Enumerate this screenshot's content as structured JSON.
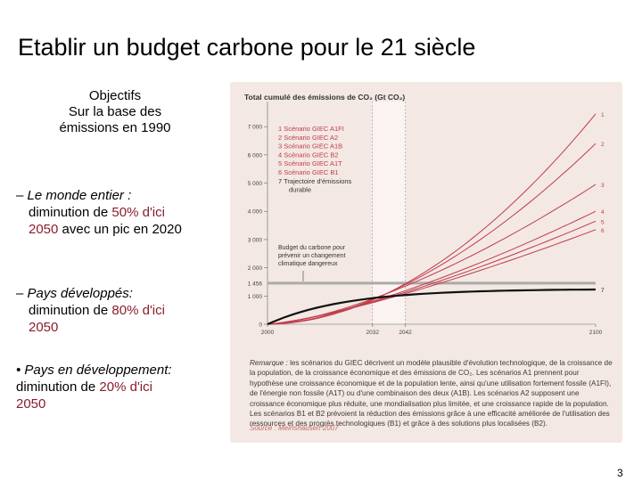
{
  "slide": {
    "title": "Etablir un budget carbone pour le 21 siècle",
    "objectifs": [
      "Objectifs",
      "Sur la base des",
      "émissions en 1990"
    ],
    "bullets": [
      {
        "lead": "– Le monde entier :",
        "pre": "diminution de ",
        "hl1": "50% d'ici",
        "hl2": "2050",
        "post": " avec un pic en 2020"
      },
      {
        "lead": "– Pays développés:",
        "pre": "diminution de ",
        "hl1": "80% d'ici",
        "hl2": "2050",
        "post": ""
      },
      {
        "lead": "• Pays en développement:",
        "pre": "diminution de ",
        "hl1": "20% d'ici",
        "hl2": "2050",
        "post": ""
      }
    ],
    "page_number": "3"
  },
  "figure": {
    "title": "Total cumulé des émissions de CO₂ (Gt CO₂)",
    "legend": [
      "1 Scénario GIEC A1FI",
      "2 Scénario GIEC A2",
      "3 Scénario GIEC A1B",
      "4 Scénario GIEC B2",
      "5 Scénario GIEC A1T",
      "6 Scénario GIEC B1",
      "7 Trajectoire d'émissions",
      "durable"
    ],
    "annotation": [
      "Budget du carbone pour",
      "prévenir un changement",
      "climatique dangereux"
    ],
    "note_label": "Remarque :",
    "note_text": "les scénarios du GIEC décrivent un modèle plausible d'évolution technologique, de la croissance de la population, de la croissance économique et des émissions de CO₂. Les scénarios A1 prennent pour hypothèse une croissance économique et de la population lente, ainsi qu'une utilisation fortement fossile (A1FI), de l'énergie non fossile (A1T) ou d'une combinaison des deux (A1B). Les scénarios A2 supposent une croissance économique plus réduite, une mondialisation plus limitée, et une croissance rapide de la population. Les scénarios B1 et B2 prévoient la réduction des émissions grâce à une efficacité améliorée de l'utilisation des ressources et des progrès technologiques (B1) et grâce à des solutions plus localisées (B2).",
    "source": "Source : Meinshausen 2007",
    "colors": {
      "scenario": "#c23b4a",
      "trajectory": "#111111",
      "budget": "#aaaaaa",
      "shade": "#fbf3f1"
    }
  },
  "chart_data": {
    "type": "line",
    "title": "Total cumulé des émissions de CO₂ (Gt CO₂)",
    "xlabel": "",
    "ylabel": "Gt CO₂",
    "x_ticks": [
      "2000",
      "2032",
      "2042",
      "2100"
    ],
    "y_ticks": [
      "0",
      "1 000",
      "2 000",
      "3 000",
      "4 000",
      "5 000",
      "6 000",
      "7 000"
    ],
    "y_special": "1 456",
    "xlim": [
      2000,
      2100
    ],
    "ylim": [
      0,
      7700
    ],
    "highlight_range": [
      2032,
      2042
    ],
    "budget_value": 1456,
    "series": [
      {
        "name": "1",
        "end": 7450,
        "curve": 1.9
      },
      {
        "name": "2",
        "end": 6400,
        "curve": 1.75
      },
      {
        "name": "3",
        "end": 4950,
        "curve": 1.5
      },
      {
        "name": "4",
        "end": 4000,
        "curve": 1.4
      },
      {
        "name": "5",
        "end": 3650,
        "curve": 1.35
      },
      {
        "name": "6",
        "end": 3350,
        "curve": 1.3
      },
      {
        "name": "7",
        "end": 1230,
        "curve": 0
      }
    ]
  }
}
